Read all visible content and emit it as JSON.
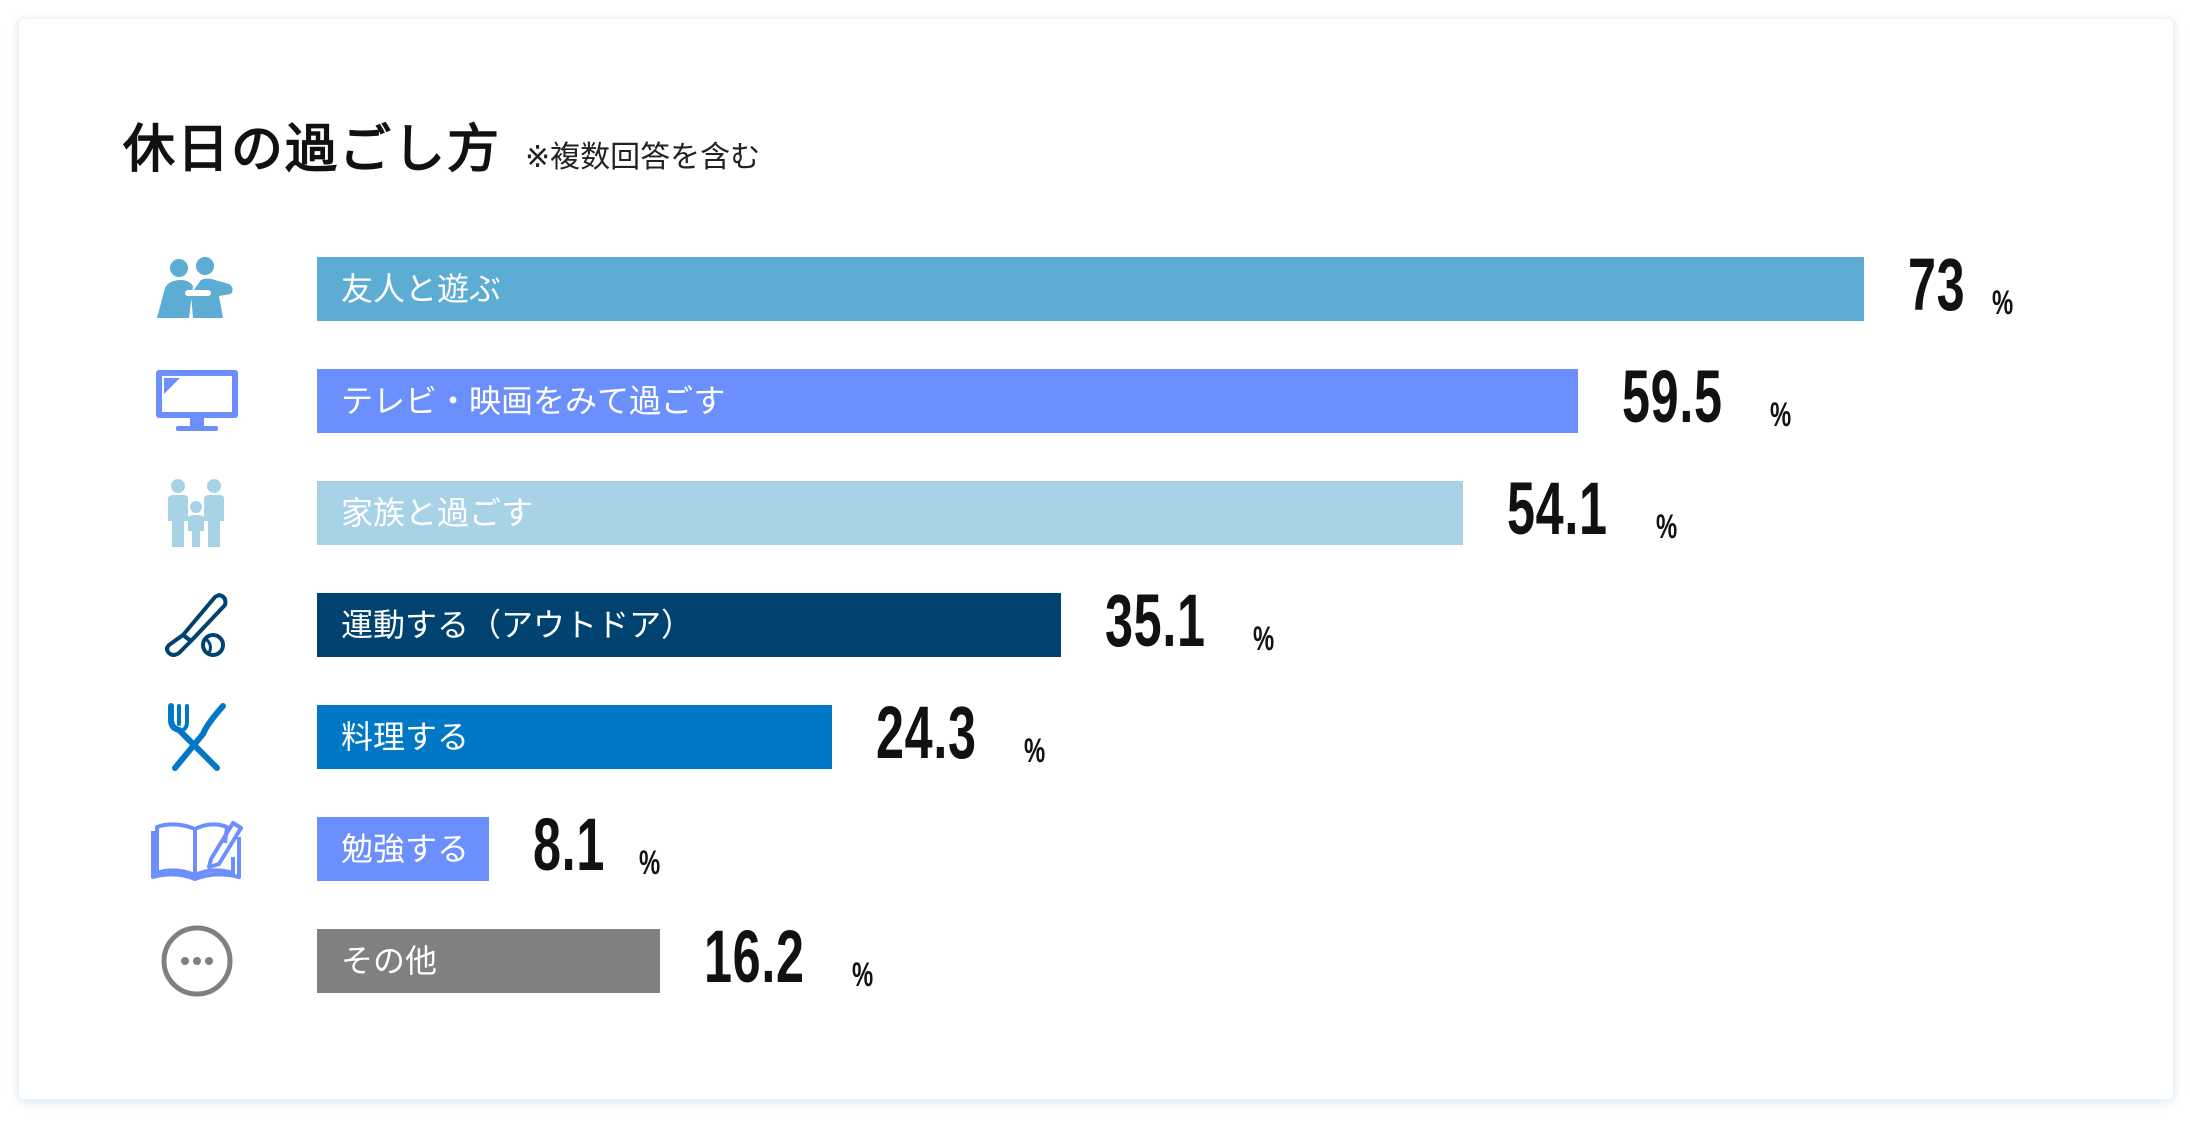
{
  "header": {
    "title": "休日の過ごし方",
    "subtitle": "※複数回答を含む"
  },
  "chart_data": {
    "type": "bar",
    "orientation": "horizontal",
    "title": "休日の過ごし方",
    "subtitle": "※複数回答を含む",
    "unit": "%",
    "xlim": [
      0,
      100
    ],
    "grid": false,
    "categories": [
      "友人と遊ぶ",
      "テレビ・映画をみて過ごす",
      "家族と過ごす",
      "運動する（アウトドア）",
      "料理する",
      "勉強する",
      "その他"
    ],
    "values": [
      73,
      59.5,
      54.1,
      35.1,
      24.3,
      8.1,
      16.2
    ],
    "value_labels": [
      "73",
      "59.5",
      "54.1",
      "35.1",
      "24.3",
      "8.1",
      "16.2"
    ],
    "colors": [
      "#5cacd3",
      "#6b8ffc",
      "#a8d2e6",
      "#004370",
      "#0078c6",
      "#6b8ffc",
      "#808080"
    ],
    "icons": [
      "friends-icon",
      "tv-icon",
      "family-icon",
      "baseball-icon",
      "fork-knife-icon",
      "book-pen-icon",
      "more-icon"
    ]
  }
}
